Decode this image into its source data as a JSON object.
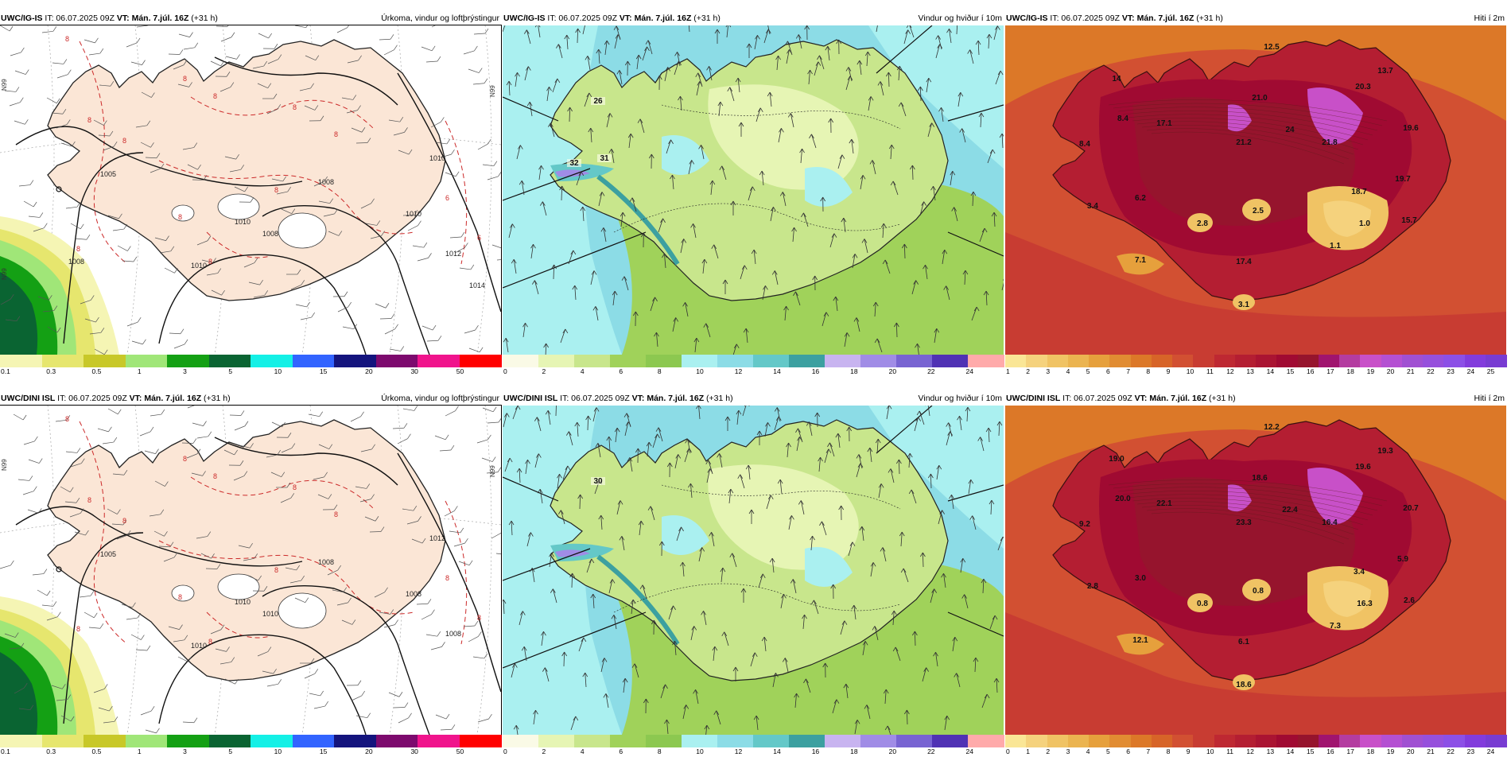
{
  "rows": [
    {
      "model": "UWC/IG-IS",
      "init": "IT: 06.07.2025 09Z",
      "valid": "VT: Mán. 7.júl. 16Z",
      "lead": "(+31 h)",
      "panels": {
        "precip": {
          "title": "Úrkoma, vindur og loftþrýstingur",
          "isobars": [
            "1005",
            "1008",
            "1010",
            "1010",
            "1008",
            "1010",
            "1010",
            "1012",
            "1014",
            "1008"
          ],
          "dashed_labels": [
            "8",
            "8",
            "8",
            "8",
            "8",
            "8",
            "8",
            "8",
            "8",
            "8",
            "8",
            "6",
            "6"
          ],
          "edge_labels": [
            "N99",
            "N99",
            "N99"
          ],
          "colorbar": [
            "0.1",
            "0.3",
            "0.5",
            "1",
            "3",
            "5",
            "10",
            "15",
            "20",
            "30",
            "50"
          ]
        },
        "wind": {
          "title": "Vindur og hviður í 10m",
          "labels": [
            "26",
            "32",
            "31"
          ],
          "colorbar": [
            "0",
            "2",
            "4",
            "6",
            "8",
            "10",
            "12",
            "14",
            "16",
            "18",
            "20",
            "22",
            "24"
          ]
        },
        "temp": {
          "title": "Hiti í 2m",
          "labels": [
            "12.5",
            "13.7",
            "14",
            "20.3",
            "21.0",
            "8.4",
            "8.4",
            "17.1",
            "21.2",
            "24",
            "21.8",
            "19.6",
            "19.7",
            "18.7",
            "6.2",
            "3.4",
            "2.8",
            "2.5",
            "1.0",
            "15.7",
            "1.1",
            "7.1",
            "17.4",
            "3.1"
          ],
          "colorbar": [
            "1",
            "2",
            "3",
            "4",
            "5",
            "6",
            "7",
            "8",
            "9",
            "10",
            "11",
            "12",
            "13",
            "14",
            "15",
            "16",
            "17",
            "18",
            "19",
            "20",
            "21",
            "22",
            "23",
            "24",
            "25"
          ]
        }
      }
    },
    {
      "model": "UWC/DINI ISL",
      "init": "IT: 06.07.2025 09Z",
      "valid": "VT: Mán. 7.júl. 16Z",
      "lead": "(+31 h)",
      "panels": {
        "precip": {
          "title": "Úrkoma, vindur og loftþrýstingur",
          "isobars": [
            "1005",
            "1008",
            "1010",
            "1010",
            "1010",
            "1012",
            "1008",
            "1008"
          ],
          "dashed_labels": [
            "8",
            "8",
            "8",
            "8",
            "8",
            "8",
            "8",
            "8",
            "8",
            "8",
            "8",
            "8",
            "8"
          ],
          "edge_labels": [
            "N99",
            "N99"
          ],
          "colorbar": [
            "0.1",
            "0.3",
            "0.5",
            "1",
            "3",
            "5",
            "10",
            "15",
            "20",
            "30",
            "50"
          ]
        },
        "wind": {
          "title": "Vindur og hviður í 10m",
          "labels": [
            "30"
          ],
          "colorbar": [
            "0",
            "2",
            "4",
            "6",
            "8",
            "10",
            "12",
            "14",
            "16",
            "18",
            "20",
            "22",
            "24"
          ]
        },
        "temp": {
          "title": "Hiti í 2m",
          "labels": [
            "12.2",
            "19.3",
            "19.0",
            "19.6",
            "18.6",
            "9.2",
            "20.0",
            "22.1",
            "23.3",
            "22.4",
            "16.4",
            "20.7",
            "5.9",
            "3.4",
            "3.0",
            "2.8",
            "0.8",
            "0.8",
            "16.3",
            "2.6",
            "7.3",
            "12.1",
            "6.1",
            "18.6"
          ],
          "colorbar": [
            "0",
            "1",
            "2",
            "3",
            "4",
            "5",
            "6",
            "7",
            "8",
            "9",
            "10",
            "11",
            "12",
            "13",
            "14",
            "15",
            "16",
            "17",
            "18",
            "19",
            "20",
            "21",
            "22",
            "23",
            "24"
          ]
        }
      }
    }
  ],
  "colors": {
    "precip": [
      "#f5f5b4",
      "#e6e66e",
      "#c8c828",
      "#a0e678",
      "#14a014",
      "#0a6432",
      "#14f0e6",
      "#3264ff",
      "#14147d",
      "#7d0a6e",
      "#f0148c",
      "#ff0000"
    ],
    "wind": [
      "#fafae6",
      "#e6f5b4",
      "#c8e68c",
      "#a0d25a",
      "#8cc850",
      "#aaf0f0",
      "#8cdce6",
      "#64c8c8",
      "#3ca0a0",
      "#c8b4f0",
      "#a08ce6",
      "#7864d2",
      "#5032b4",
      "#ffaaaa"
    ],
    "temp": [
      "#fae696",
      "#f5d27d",
      "#f0c364",
      "#ebb450",
      "#e6a03c",
      "#e18c32",
      "#dc7828",
      "#d76428",
      "#d25032",
      "#c83c32",
      "#be2832",
      "#b41e32",
      "#aa1432",
      "#a00a32",
      "#96142d",
      "#a0146e",
      "#b43ca0",
      "#c850c8",
      "#b450d2",
      "#a050d2",
      "#9650dc",
      "#8c50e6",
      "#823cdc",
      "#783cd2"
    ]
  }
}
